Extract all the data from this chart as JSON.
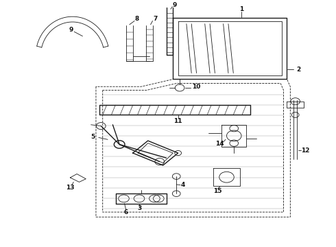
{
  "bg_color": "#ffffff",
  "line_color": "#1a1a1a",
  "label_color": "#111111",
  "lw_thin": 0.6,
  "lw_med": 1.0,
  "lw_thick": 1.3
}
